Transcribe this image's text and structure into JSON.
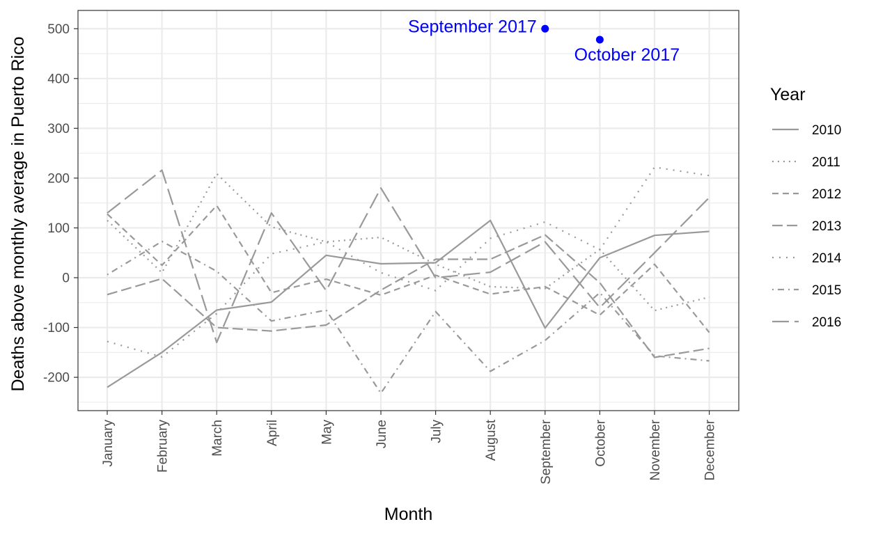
{
  "chart_data": {
    "type": "line",
    "xlabel": "Month",
    "ylabel": "Deaths above monthly average in Puerto Rico",
    "categories": [
      "January",
      "February",
      "March",
      "April",
      "May",
      "June",
      "July",
      "August",
      "September",
      "October",
      "November",
      "December"
    ],
    "ylim": [
      -260,
      540
    ],
    "yticks": [
      -200,
      -100,
      0,
      100,
      200,
      300,
      400,
      500
    ],
    "grid": true,
    "legend": {
      "title": "Year",
      "position": "right"
    },
    "series": [
      {
        "name": "2010",
        "dash": "solid",
        "values": [
          -220,
          -150,
          -65,
          -49,
          45,
          28,
          30,
          115,
          -101,
          40,
          85,
          93
        ]
      },
      {
        "name": "2011",
        "dash": "dotted",
        "values": [
          115,
          10,
          209,
          102,
          72,
          81,
          27,
          -18,
          -22,
          57,
          -66,
          -39
        ]
      },
      {
        "name": "2012",
        "dash": "dashed",
        "values": [
          128,
          25,
          145,
          -30,
          -3,
          -35,
          5,
          -33,
          -18,
          -75,
          27,
          -110
        ]
      },
      {
        "name": "2013",
        "dash": "longdash",
        "values": [
          -34,
          -2,
          -100,
          -107,
          -95,
          -25,
          37,
          37,
          86,
          -10,
          -160,
          -142
        ]
      },
      {
        "name": "2014",
        "dash": "dotted2",
        "values": [
          -128,
          -159,
          -72,
          48,
          72,
          10,
          -26,
          79,
          112,
          56,
          222,
          205
        ]
      },
      {
        "name": "2015",
        "dash": "dotdash",
        "values": [
          6,
          73,
          13,
          -87,
          -65,
          -232,
          -68,
          -188,
          -126,
          -30,
          -157,
          -167
        ]
      },
      {
        "name": "2016",
        "dash": "twodash",
        "values": [
          130,
          216,
          -130,
          130,
          -26,
          180,
          0,
          11,
          72,
          -60,
          50,
          161
        ]
      }
    ],
    "highlights": [
      {
        "label": "September 2017",
        "month": "September",
        "value": 500,
        "color": "#0000ff",
        "label_side": "left"
      },
      {
        "label": "October 2017",
        "month": "October",
        "value": 478,
        "color": "#0000ff",
        "label_side": "below"
      }
    ]
  }
}
